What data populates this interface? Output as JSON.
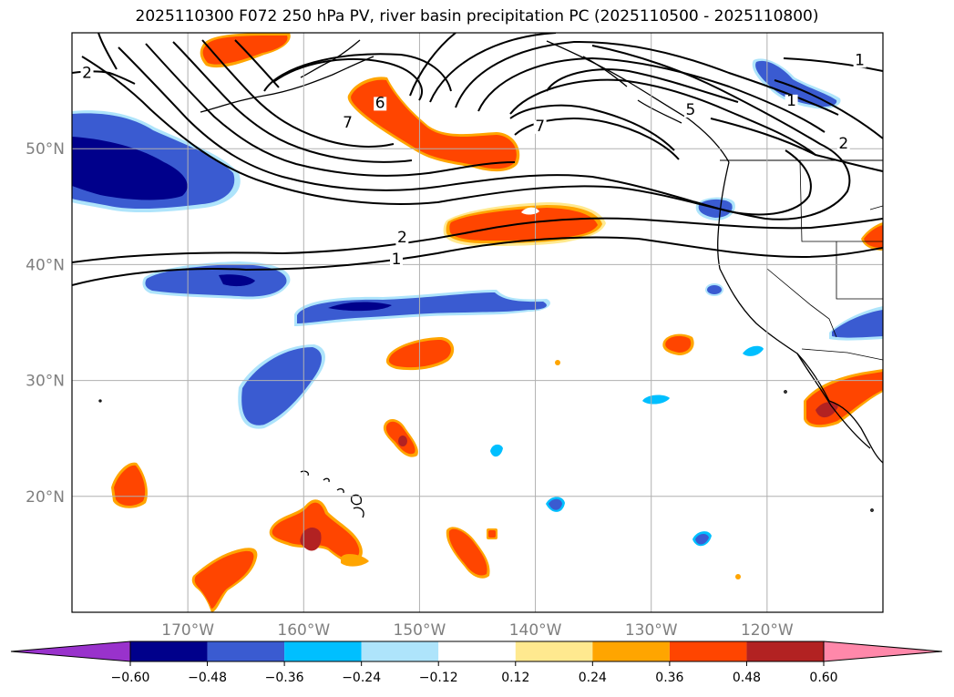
{
  "title": "2025110300 F072 250 hPa PV, river basin precipitation PC (2025110500 - 2025110800)",
  "map": {
    "lon_range": [
      -180,
      -110
    ],
    "lat_range": [
      10,
      60
    ],
    "lon_ticks": [
      {
        "value": -170,
        "label": "170°W"
      },
      {
        "value": -160,
        "label": "160°W"
      },
      {
        "value": -150,
        "label": "150°W"
      },
      {
        "value": -140,
        "label": "140°W"
      },
      {
        "value": -130,
        "label": "130°W"
      },
      {
        "value": -120,
        "label": "120°W"
      }
    ],
    "lat_ticks": [
      {
        "value": 20,
        "label": "20°N"
      },
      {
        "value": 30,
        "label": "30°N"
      },
      {
        "value": 40,
        "label": "40°N"
      },
      {
        "value": 50,
        "label": "50°N"
      }
    ],
    "grid": true,
    "colors": {
      "grid": "#b0b0b0",
      "contour": "#000000",
      "land_outline": "#000000"
    }
  },
  "contour_labels": [
    {
      "text": "2",
      "lon": -178.7,
      "lat": 56.2
    },
    {
      "text": "7",
      "lon": -156.2,
      "lat": 51.9
    },
    {
      "text": "6",
      "lon": -153.4,
      "lat": 53.6
    },
    {
      "text": "7",
      "lon": -139.6,
      "lat": 51.6
    },
    {
      "text": "5",
      "lon": -126.6,
      "lat": 53.0
    },
    {
      "text": "1",
      "lon": -117.9,
      "lat": 53.8
    },
    {
      "text": "1",
      "lon": -112.0,
      "lat": 57.3
    },
    {
      "text": "2",
      "lon": -113.4,
      "lat": 50.1
    },
    {
      "text": "2",
      "lon": -151.5,
      "lat": 42.0
    },
    {
      "text": "1",
      "lon": -152.0,
      "lat": 40.1
    }
  ],
  "colorbar": {
    "boundaries": [
      -0.6,
      -0.48,
      -0.36,
      -0.24,
      -0.12,
      0.12,
      0.24,
      0.36,
      0.48,
      0.6
    ],
    "tick_labels": [
      "−0.60",
      "−0.48",
      "−0.36",
      "−0.24",
      "−0.12",
      "0.12",
      "0.24",
      "0.36",
      "0.48",
      "0.60"
    ],
    "colors": {
      "under": "#9932cc",
      "bins": [
        "#00008b",
        "#3a5bd1",
        "#00bfff",
        "#aee4fb",
        "#ffffff",
        "#ffe98f",
        "#ffa500",
        "#ff4500",
        "#b22222"
      ],
      "over": "#ff88aa"
    }
  }
}
